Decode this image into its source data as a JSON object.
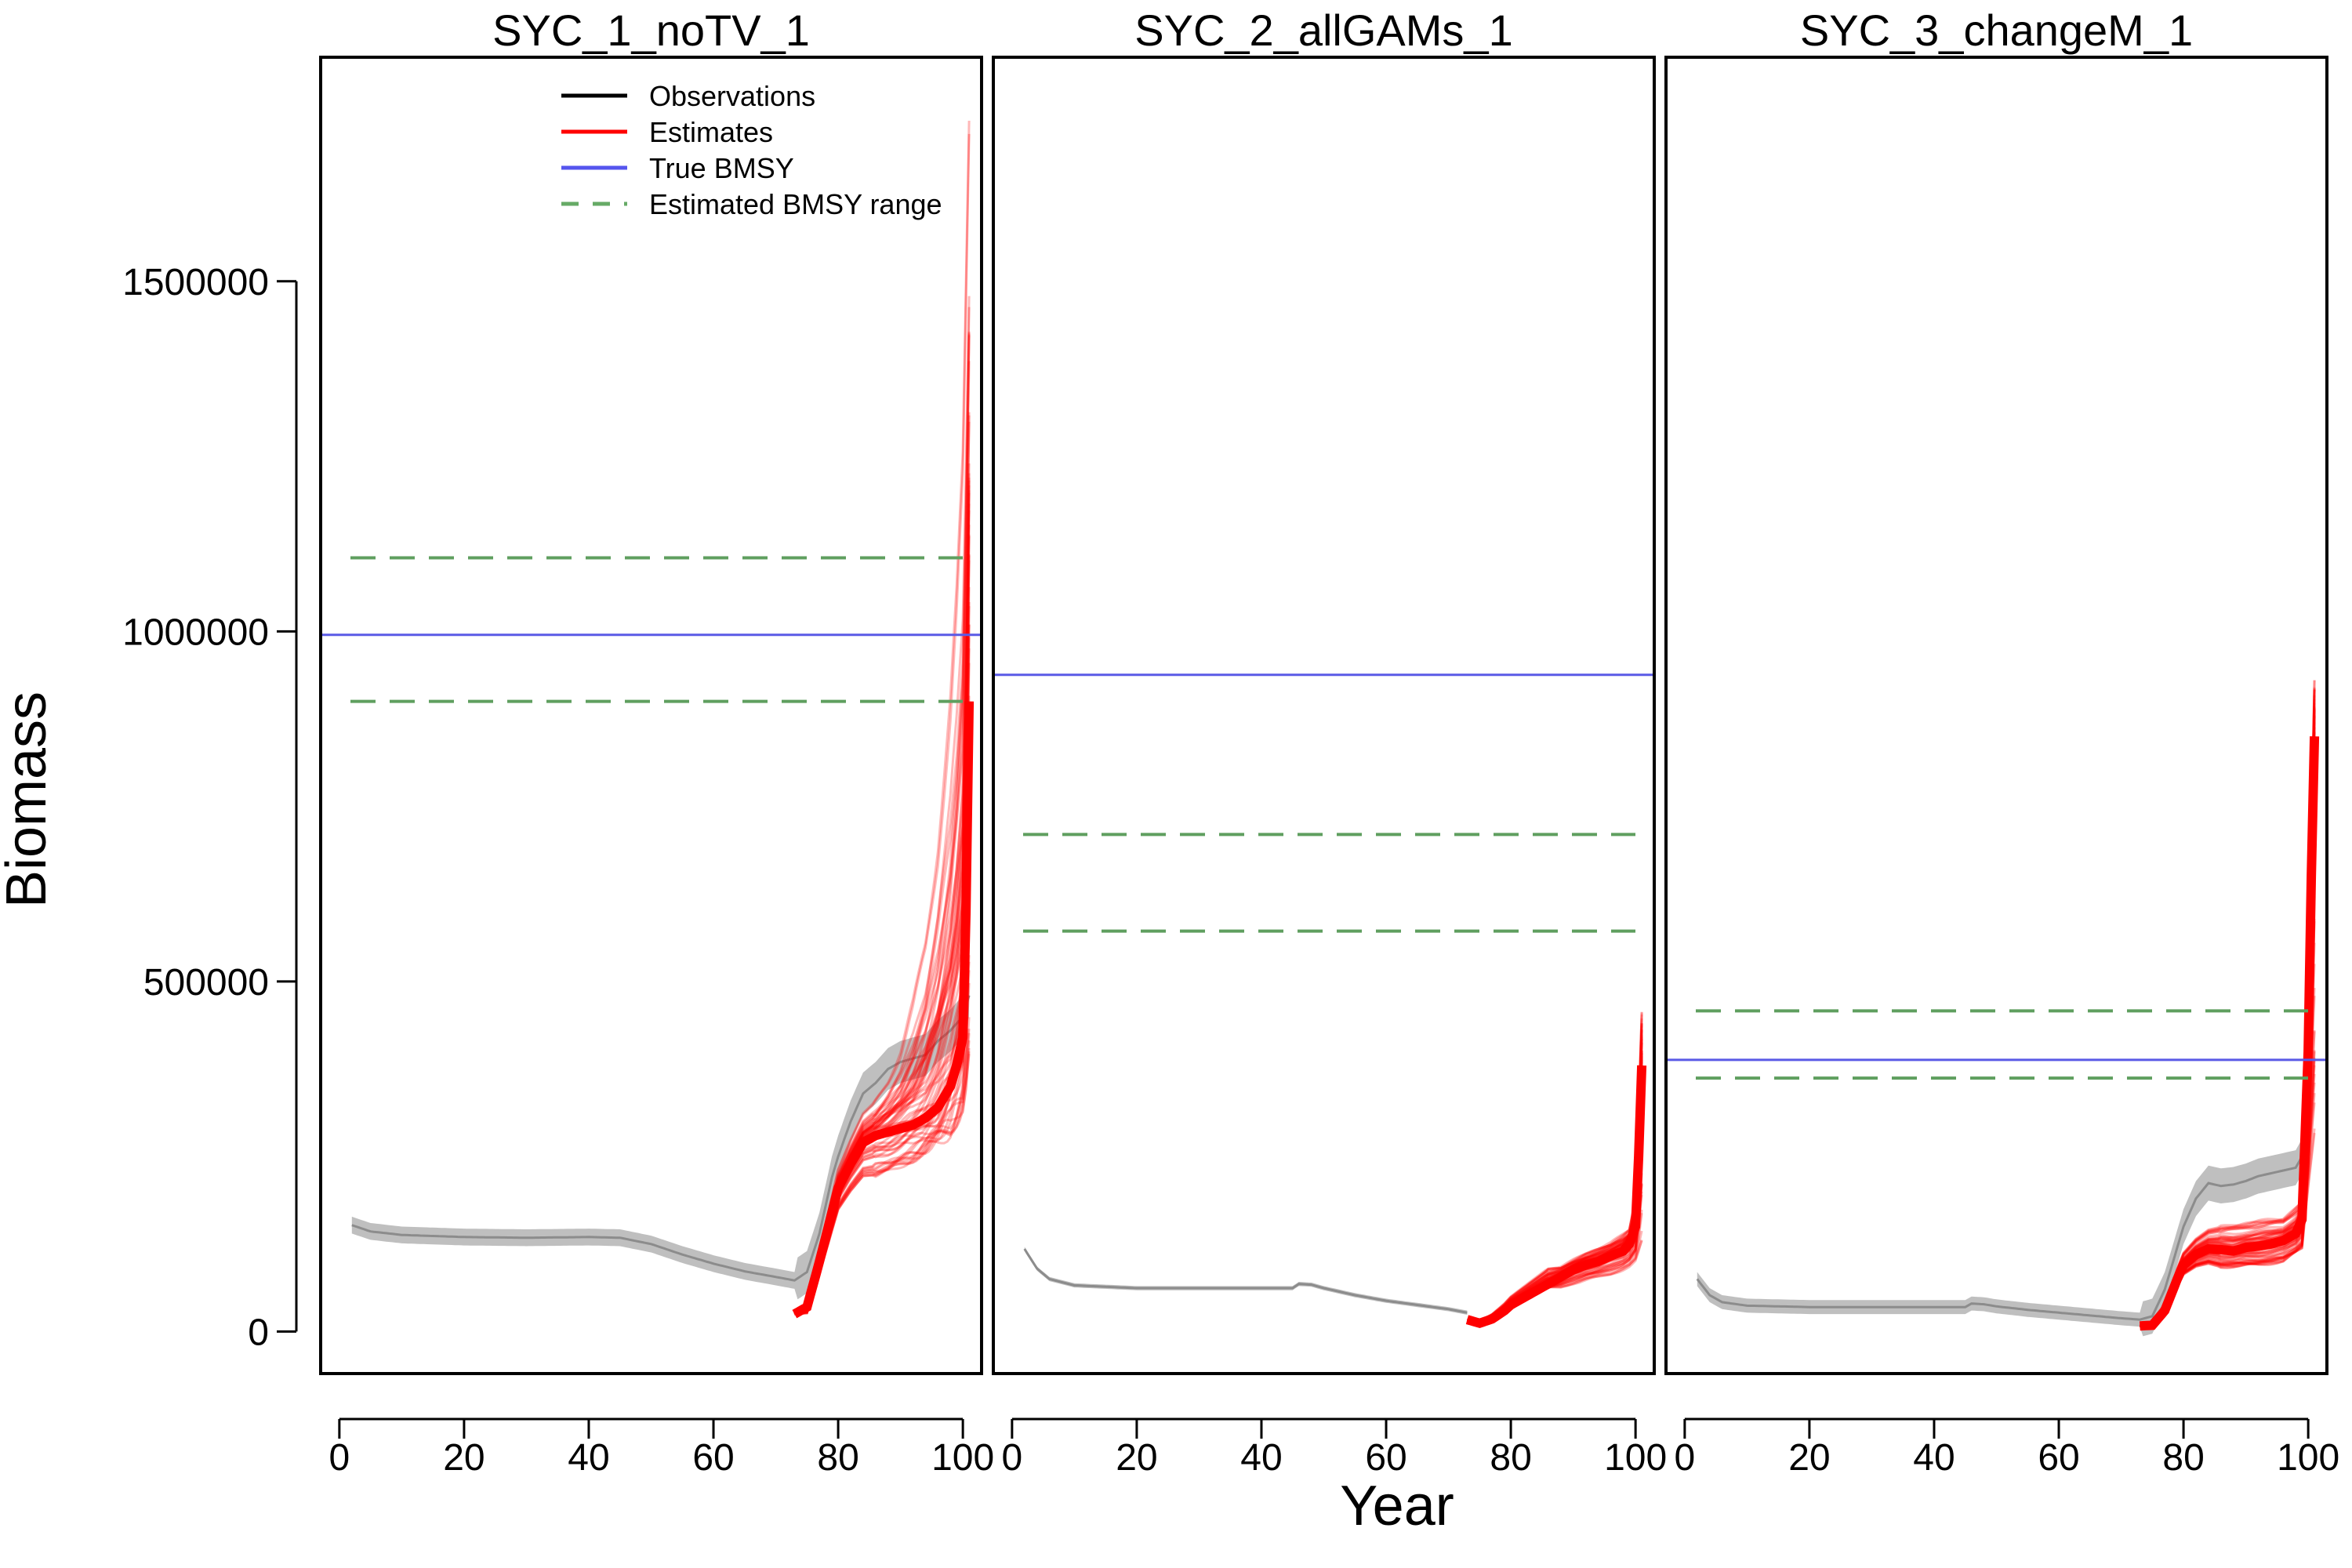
{
  "chart_data": {
    "type": "line",
    "layout": "three panels side by side with shared y-axis",
    "xlabel": "Year",
    "ylabel": "Biomass",
    "xlim": [
      -3,
      103
    ],
    "ylim": [
      -60000,
      1820000
    ],
    "x_ticks": [
      0,
      20,
      40,
      60,
      80,
      100
    ],
    "y_ticks": [
      0,
      500000,
      1000000,
      1500000
    ],
    "y_tick_labels": [
      "0",
      "500000",
      "1000000",
      "1500000"
    ],
    "grid": false,
    "legend": {
      "placement": "top of first panel",
      "entries": [
        {
          "label": "Observations",
          "color": "#000000",
          "style": "solid"
        },
        {
          "label": "Estimates",
          "color": "#ff0000",
          "style": "solid"
        },
        {
          "label": "True BMSY",
          "color": "#5555ee",
          "style": "solid"
        },
        {
          "label": "Estimated BMSY range",
          "color": "#66aa66",
          "style": "dashed"
        }
      ]
    },
    "colors": {
      "observations": "#8c8c8c",
      "observations_band": "#aaaaaa",
      "estimates": "#ff0000",
      "true_bmsy": "#5a5ae6",
      "bmsy_range": "#5f9f5f"
    },
    "panels": [
      {
        "title": "SYC_1_noTV_1",
        "true_bmsy": 995000,
        "estimated_bmsy_range": [
          900000,
          1105000
        ],
        "observations": {
          "x": [
            2,
            5,
            10,
            20,
            30,
            40,
            45,
            50,
            55,
            60,
            65,
            70,
            73,
            75,
            77,
            79,
            80,
            82,
            84,
            86,
            88,
            90,
            92,
            94,
            96,
            98,
            100,
            101
          ],
          "y": [
            152000,
            143000,
            138000,
            135000,
            134000,
            135000,
            134000,
            125000,
            110000,
            97000,
            86000,
            78000,
            73000,
            85000,
            140000,
            220000,
            250000,
            300000,
            340000,
            355000,
            375000,
            385000,
            390000,
            395000,
            415000,
            430000,
            450000,
            480000
          ],
          "band_halfwidth": 12000
        },
        "estimates": {
          "x": [
            73,
            75,
            77,
            79,
            80,
            82,
            84,
            86,
            88,
            90,
            92,
            94,
            96,
            98,
            99,
            100,
            100.5,
            101
          ],
          "y": [
            25000,
            35000,
            100000,
            170000,
            205000,
            240000,
            270000,
            280000,
            285000,
            290000,
            295000,
            305000,
            320000,
            350000,
            380000,
            420000,
            600000,
            900000
          ],
          "max_envelope": {
            "x": [
              86,
              88,
              90,
              92,
              94,
              96,
              98,
              99,
              100,
              100.5,
              101
            ],
            "y": [
              330000,
              360000,
              400000,
              470000,
              560000,
              700000,
              900000,
              1050000,
              1250000,
              1500000,
              1750000
            ]
          },
          "min_envelope": {
            "x": [
              86,
              88,
              90,
              92,
              94,
              96,
              98,
              100,
              101
            ],
            "y": [
              220000,
              225000,
              235000,
              245000,
              255000,
              270000,
              290000,
              330000,
              360000
            ]
          }
        }
      },
      {
        "title": "SYC_2_allGAMs_1",
        "true_bmsy": 938000,
        "estimated_bmsy_range": [
          572000,
          710000
        ],
        "observations": {
          "x": [
            2,
            4,
            6,
            10,
            20,
            30,
            40,
            45,
            46,
            48,
            50,
            55,
            60,
            65,
            70,
            73
          ],
          "y": [
            118000,
            90000,
            75000,
            66000,
            62000,
            62000,
            62000,
            62000,
            68000,
            67000,
            62000,
            52000,
            44000,
            38000,
            32000,
            27000
          ],
          "band_halfwidth": 3000
        },
        "estimates": {
          "x": [
            73,
            75,
            77,
            79,
            80,
            82,
            84,
            86,
            88,
            90,
            92,
            94,
            96,
            98,
            99,
            100,
            100.5,
            101
          ],
          "y": [
            17000,
            12000,
            18000,
            30000,
            38000,
            48000,
            58000,
            68000,
            78000,
            88000,
            95000,
            100000,
            108000,
            115000,
            125000,
            150000,
            250000,
            380000
          ],
          "max_envelope": {
            "x": [
              88,
              92,
              96,
              99,
              100,
              100.5,
              101
            ],
            "y": [
              95000,
              115000,
              130000,
              150000,
              200000,
              330000,
              470000
            ]
          },
          "min_envelope": {
            "x": [
              88,
              92,
              96,
              99,
              101
            ],
            "y": [
              62000,
              72000,
              80000,
              90000,
              100000
            ]
          }
        }
      },
      {
        "title": "SYC_3_changeM_1",
        "true_bmsy": 388000,
        "estimated_bmsy_range": [
          362000,
          458000
        ],
        "observations": {
          "x": [
            2,
            4,
            6,
            10,
            20,
            30,
            40,
            45,
            46,
            48,
            50,
            55,
            60,
            65,
            70,
            73,
            75,
            77,
            79,
            80,
            82,
            84,
            86,
            88,
            90,
            92,
            94,
            96,
            98,
            99,
            100,
            100.5,
            101
          ],
          "y": [
            75000,
            52000,
            42000,
            37000,
            35000,
            35000,
            35000,
            35000,
            40000,
            39000,
            36000,
            31000,
            27000,
            23000,
            19000,
            17000,
            22000,
            60000,
            120000,
            150000,
            190000,
            212000,
            208000,
            210000,
            215000,
            222000,
            226000,
            230000,
            234000,
            250000,
            450000,
            700000,
            850000
          ],
          "band_halfwidth": 10000
        },
        "estimates": {
          "x": [
            73,
            75,
            77,
            79,
            80,
            82,
            84,
            86,
            88,
            90,
            92,
            94,
            96,
            98,
            99,
            100,
            100.5,
            101
          ],
          "y": [
            8000,
            9000,
            30000,
            75000,
            95000,
            110000,
            118000,
            117000,
            115000,
            120000,
            122000,
            125000,
            130000,
            140000,
            160000,
            400000,
            650000,
            850000
          ],
          "max_envelope": {
            "x": [
              86,
              92,
              96,
              99,
              100,
              100.5,
              101
            ],
            "y": [
              150000,
              158000,
              162000,
              185000,
              450000,
              700000,
              920000
            ]
          },
          "min_envelope": {
            "x": [
              86,
              92,
              96,
              99,
              101
            ],
            "y": [
              92000,
              95000,
              100000,
              118000,
              300000
            ]
          }
        }
      }
    ]
  }
}
